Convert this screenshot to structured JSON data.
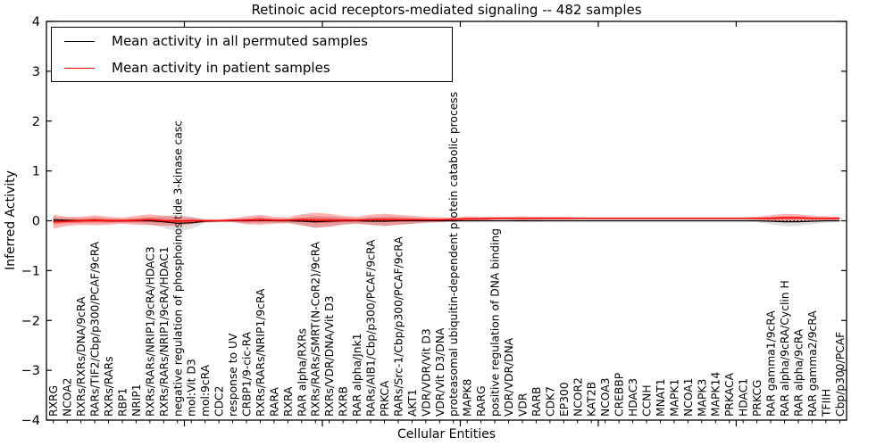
{
  "chart_data": {
    "type": "line",
    "title": "Retinoic acid receptors-mediated signaling -- 482 samples",
    "xlabel": "Cellular Entities",
    "ylabel": "Inferred Activity",
    "ylim": [
      -4,
      4
    ],
    "xlim": [
      0,
      58
    ],
    "yticks": [
      -4,
      -3,
      -2,
      -1,
      0,
      1,
      2,
      3,
      4
    ],
    "xticks_major": [
      10,
      20,
      30,
      40,
      50
    ],
    "grid": false,
    "legend_position": "upper left",
    "zero_line_style": "dotted",
    "colors": {
      "permuted_line": "#000000",
      "patient_line": "#ff0000",
      "permuted_band": "#888888",
      "patient_band": "#ff0000",
      "axis": "#000000"
    },
    "categories": [
      "RXRG",
      "NCOA2",
      "RXRs/RXRs/DNA/9cRA",
      "RARs/TIF2/Cbp/p300/PCAF/9cRA",
      "RXRs/RARs",
      "RBP1",
      "NRIP1",
      "RXRs/RARs/NRIP1/9cRA/HDAC3",
      "RXRs/RARs/NRIP1/9cRA/HDAC1",
      "negative regulation of phosphoinositide 3-kinase casc",
      "mol:Vit D3",
      "mol:9cRA",
      "CDC2",
      "response to UV",
      "CRBP1/9-cic-RA",
      "RXRs/RARs/NRIP1/9cRA",
      "RARA",
      "RXRA",
      "RAR alpha/RXRs",
      "RXRs/RARs/SMRT(N-CoR2)/9cRA",
      "RXRs/VDR/DNA/Vit D3",
      "RXRB",
      "RAR alpha/Jnk1",
      "RARs/AIB1/Cbp/p300/PCAF/9cRA",
      "PRKCA",
      "RARs/Src-1/Cbp/p300/PCAF/9cRA",
      "AKT1",
      "VDR/VDR/Vit D3",
      "VDR/Vit D3/DNA",
      "proteasomal ubiquitin-dependent protein catabolic process",
      "MAPK8",
      "RARG",
      "positive regulation of DNA binding",
      "VDR/VDR/DNA",
      "VDR",
      "RARB",
      "CDK7",
      "EP300",
      "NCOR2",
      "KAT2B",
      "NCOA3",
      "CREBBP",
      "HDAC3",
      "CCNH",
      "MNAT1",
      "MAPK1",
      "NCOA1",
      "MAPK3",
      "MAPK14",
      "PRKACA",
      "HDAC1",
      "PRKCG",
      "RAR gamma1/9cRA",
      "RAR alpha/9cRA/Cyclin H",
      "RAR alpha/9cRA",
      "RAR gamma2/9cRA",
      "TFIIH",
      "Cbp/p300/PCAF"
    ],
    "series": [
      {
        "name": "Mean activity in all permuted samples",
        "color": "#000000",
        "values": [
          0.02,
          0.01,
          0.0,
          0.01,
          0.0,
          0.0,
          0.0,
          0.0,
          -0.02,
          -0.05,
          -0.04,
          -0.01,
          0.0,
          0.0,
          0.0,
          0.01,
          0.0,
          0.0,
          -0.01,
          -0.02,
          -0.01,
          0.0,
          0.0,
          -0.01,
          -0.01,
          0.0,
          0.0,
          0.0,
          0.0,
          0.0,
          0.0,
          0.0,
          0.0,
          0.0,
          0.0,
          0.0,
          0.0,
          0.0,
          0.0,
          0.0,
          0.0,
          0.0,
          0.0,
          0.0,
          0.0,
          0.0,
          0.0,
          0.0,
          0.0,
          0.0,
          0.0,
          0.0,
          -0.01,
          -0.02,
          -0.02,
          -0.01,
          0.0,
          0.0
        ],
        "band": [
          0.06,
          0.05,
          0.05,
          0.06,
          0.05,
          0.04,
          0.05,
          0.07,
          0.12,
          0.17,
          0.12,
          0.04,
          0.02,
          0.03,
          0.05,
          0.06,
          0.04,
          0.04,
          0.08,
          0.12,
          0.1,
          0.07,
          0.05,
          0.08,
          0.1,
          0.08,
          0.06,
          0.04,
          0.03,
          0.03,
          0.03,
          0.03,
          0.02,
          0.02,
          0.03,
          0.03,
          0.02,
          0.02,
          0.02,
          0.02,
          0.02,
          0.02,
          0.02,
          0.02,
          0.02,
          0.02,
          0.02,
          0.02,
          0.02,
          0.02,
          0.02,
          0.03,
          0.06,
          0.09,
          0.08,
          0.06,
          0.04,
          0.03
        ]
      },
      {
        "name": "Mean activity in patient samples",
        "color": "#ff0000",
        "values": [
          -0.02,
          -0.01,
          0.0,
          0.01,
          0.0,
          0.0,
          0.01,
          0.02,
          0.0,
          -0.01,
          0.0,
          0.0,
          0.0,
          0.01,
          0.01,
          0.02,
          0.01,
          0.01,
          0.02,
          0.01,
          0.01,
          0.01,
          0.01,
          0.02,
          0.02,
          0.02,
          0.02,
          0.02,
          0.02,
          0.03,
          0.04,
          0.04,
          0.05,
          0.05,
          0.05,
          0.05,
          0.05,
          0.05,
          0.05,
          0.05,
          0.05,
          0.05,
          0.05,
          0.05,
          0.05,
          0.05,
          0.05,
          0.05,
          0.05,
          0.05,
          0.05,
          0.05,
          0.05,
          0.06,
          0.06,
          0.05,
          0.05,
          0.05
        ],
        "band": [
          0.14,
          0.09,
          0.08,
          0.1,
          0.08,
          0.06,
          0.09,
          0.11,
          0.1,
          0.09,
          0.07,
          0.03,
          0.03,
          0.04,
          0.08,
          0.1,
          0.07,
          0.06,
          0.11,
          0.15,
          0.13,
          0.09,
          0.07,
          0.1,
          0.12,
          0.1,
          0.08,
          0.06,
          0.05,
          0.04,
          0.05,
          0.04,
          0.03,
          0.03,
          0.04,
          0.03,
          0.03,
          0.03,
          0.02,
          0.02,
          0.02,
          0.02,
          0.02,
          0.02,
          0.02,
          0.02,
          0.02,
          0.02,
          0.02,
          0.02,
          0.02,
          0.03,
          0.06,
          0.08,
          0.07,
          0.05,
          0.04,
          0.03
        ]
      }
    ]
  }
}
